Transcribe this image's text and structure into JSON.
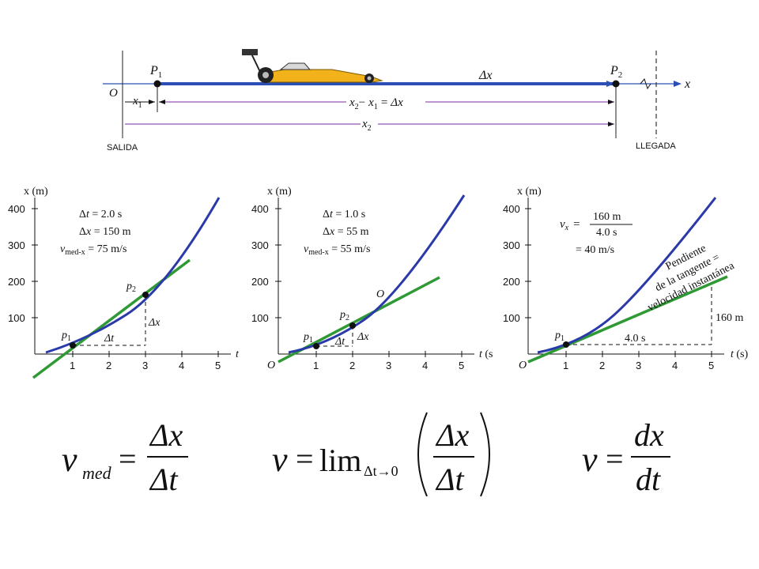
{
  "track": {
    "origin_label": "O",
    "axis_label": "x",
    "p1_main": "P",
    "p1_sub": "1",
    "p2_main": "P",
    "p2_sub": "2",
    "x1_main": "x",
    "x1_sub": "1",
    "dx_label": "Δx",
    "mid_eq": {
      "a": "x",
      "a_sub": "2",
      "minus": "−",
      "b": "x",
      "b_sub": "1",
      "eq": "=",
      "c": "Δx"
    },
    "x2_main": "x",
    "x2_sub": "2",
    "start_label": "SALIDA",
    "finish_label": "LLEGADA",
    "colors": {
      "arrow": "#2b4fb5",
      "dim": "#7a2aa0"
    }
  },
  "graphs": [
    {
      "ylabel": "x (m)",
      "xlabel": "t",
      "yticks": [
        "100",
        "200",
        "300",
        "400"
      ],
      "xticks": [
        "1",
        "2",
        "3",
        "4",
        "5"
      ],
      "info": [
        {
          "pre": "Δ",
          "var": "t",
          "post": " = 2.0 s"
        },
        {
          "pre": "Δ",
          "var": "x",
          "post": " = 150 m"
        },
        {
          "pre": "",
          "var": "v",
          "sub": "med-x",
          "post": " = 75 m/s"
        }
      ],
      "p1": {
        "main": "p",
        "sub": "1"
      },
      "p2": {
        "main": "p",
        "sub": "2"
      },
      "dt_label": "Δt",
      "dx_label": "Δx"
    },
    {
      "ylabel": "x (m)",
      "xlabel": "t (s",
      "origin": "O",
      "yticks": [
        "100",
        "200",
        "300",
        "400"
      ],
      "xticks": [
        "1",
        "2",
        "3",
        "4",
        "5"
      ],
      "info": [
        {
          "pre": "Δ",
          "var": "t",
          "post": " = 1.0 s"
        },
        {
          "pre": "Δ",
          "var": "x",
          "post": " = 55 m"
        },
        {
          "pre": "",
          "var": "v",
          "sub": "med-x",
          "post": " = 55 m/s"
        }
      ],
      "p1": {
        "main": "p",
        "sub": "1"
      },
      "p2": {
        "main": "p",
        "sub": "2"
      },
      "curve_label": "O",
      "dt_label": "Δt",
      "dx_label": "Δx"
    },
    {
      "ylabel": "x (m)",
      "xlabel": "t (s)",
      "origin": "O",
      "yticks": [
        "100",
        "200",
        "300",
        "400"
      ],
      "xticks": [
        "1",
        "2",
        "3",
        "4",
        "5"
      ],
      "vx": {
        "var": "v",
        "sub": "x",
        "num": "160 m",
        "den": "4.0 s",
        "eq1": "=",
        "eq2": "= 40 m/s"
      },
      "p1": {
        "main": "p",
        "sub": "1"
      },
      "run_label": "4.0 s",
      "rise_label": "160 m",
      "slope_text": [
        "Pendiente",
        "de la tangente =",
        "velocidad instantánea"
      ]
    }
  ],
  "formulas": {
    "f1": {
      "v": "v",
      "sub": "med",
      "eq": "=",
      "num": "Δx",
      "den": "Δt"
    },
    "f2": {
      "v": "v",
      "eq": "=",
      "lim": "lim",
      "limsub": "Δt→0",
      "num": "Δx",
      "den": "Δt"
    },
    "f3": {
      "v": "v",
      "eq": "=",
      "num": "dx",
      "den": "dt"
    }
  },
  "colors": {
    "curve": "#2a3aa8",
    "tangent": "#2f9a35",
    "axis": "#111111"
  }
}
